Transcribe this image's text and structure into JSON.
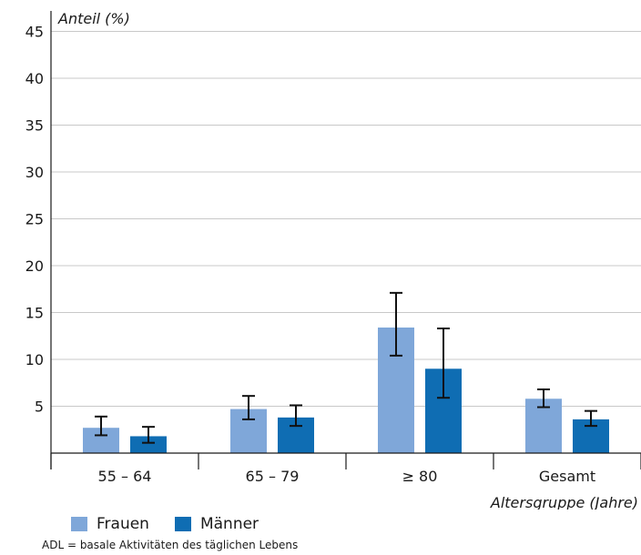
{
  "chart_data": {
    "type": "bar",
    "ylabel": "Anteil (%)",
    "xlabel": "Altersgruppe (Jahre)",
    "categories": [
      "55 – 64",
      "65 – 79",
      "≥ 80",
      "Gesamt"
    ],
    "ylim": [
      0,
      45
    ],
    "yticks": [
      5,
      10,
      15,
      20,
      25,
      30,
      35,
      40,
      45
    ],
    "grid": true,
    "legend_position": "bottom-left",
    "series": [
      {
        "name": "Frauen",
        "color": "#7fa7d9",
        "values": [
          2.7,
          4.7,
          13.4,
          5.8
        ],
        "ci_low": [
          1.9,
          3.6,
          10.4,
          4.9
        ],
        "ci_high": [
          3.9,
          6.1,
          17.1,
          6.8
        ]
      },
      {
        "name": "Männer",
        "color": "#0f6db3",
        "values": [
          1.8,
          3.8,
          9.0,
          3.6
        ],
        "ci_low": [
          1.1,
          2.9,
          5.9,
          2.9
        ],
        "ci_high": [
          2.8,
          5.1,
          13.3,
          4.5
        ]
      }
    ]
  },
  "footnote": "ADL = basale Aktivitäten des täglichen Lebens"
}
